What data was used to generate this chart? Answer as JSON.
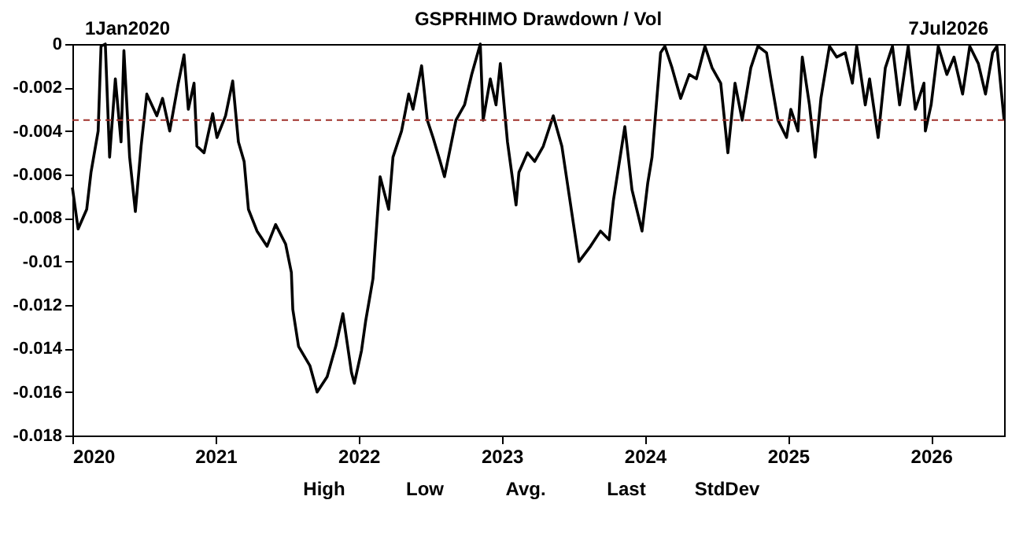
{
  "chart_data": {
    "type": "line",
    "title": "GSPRHIMO Drawdown / Vol",
    "x": [
      2020.0,
      2020.04,
      2020.1,
      2020.13,
      2020.18,
      2020.2,
      2020.23,
      2020.26,
      2020.3,
      2020.34,
      2020.36,
      2020.4,
      2020.44,
      2020.48,
      2020.52,
      2020.59,
      2020.63,
      2020.68,
      2020.74,
      2020.78,
      2020.81,
      2020.85,
      2020.87,
      2020.92,
      2020.98,
      2021.01,
      2021.07,
      2021.12,
      2021.16,
      2021.2,
      2021.23,
      2021.29,
      2021.36,
      2021.42,
      2021.49,
      2021.53,
      2021.54,
      2021.58,
      2021.66,
      2021.71,
      2021.78,
      2021.84,
      2021.89,
      2021.95,
      2021.97,
      2022.02,
      2022.05,
      2022.1,
      2022.15,
      2022.21,
      2022.24,
      2022.3,
      2022.35,
      2022.38,
      2022.44,
      2022.48,
      2022.52,
      2022.57,
      2022.6,
      2022.68,
      2022.74,
      2022.79,
      2022.85,
      2022.87,
      2022.92,
      2022.96,
      2022.99,
      2023.04,
      2023.1,
      2023.12,
      2023.18,
      2023.23,
      2023.29,
      2023.36,
      2023.42,
      2023.47,
      2023.54,
      2023.62,
      2023.69,
      2023.75,
      2023.78,
      2023.86,
      2023.91,
      2023.98,
      2024.02,
      2024.05,
      2024.11,
      2024.14,
      2024.19,
      2024.25,
      2024.31,
      2024.36,
      2024.42,
      2024.47,
      2024.53,
      2024.58,
      2024.63,
      2024.68,
      2024.74,
      2024.79,
      2024.85,
      2024.88,
      2024.93,
      2024.99,
      2025.02,
      2025.07,
      2025.1,
      2025.15,
      2025.19,
      2025.23,
      2025.29,
      2025.34,
      2025.4,
      2025.45,
      2025.48,
      2025.54,
      2025.57,
      2025.63,
      2025.68,
      2025.73,
      2025.78,
      2025.84,
      2025.89,
      2025.95,
      2025.96,
      2026.0,
      2026.05,
      2026.11,
      2026.16,
      2026.22,
      2026.27,
      2026.33,
      2026.38,
      2026.43,
      2026.46,
      2026.51
    ],
    "series": [
      {
        "color": "#000000",
        "values": [
          -0.0066,
          -0.0085,
          -0.0076,
          -0.0059,
          -0.004,
          -0.0001,
          0,
          -0.0052,
          -0.0016,
          -0.0045,
          -0.0003,
          -0.0052,
          -0.0077,
          -0.0047,
          -0.0023,
          -0.0033,
          -0.0025,
          -0.004,
          -0.0018,
          -0.0005,
          -0.003,
          -0.0018,
          -0.0047,
          -0.005,
          -0.0032,
          -0.0043,
          -0.0033,
          -0.0017,
          -0.0045,
          -0.0054,
          -0.0076,
          -0.0086,
          -0.0093,
          -0.0083,
          -0.0092,
          -0.0105,
          -0.0122,
          -0.0139,
          -0.0148,
          -0.016,
          -0.0153,
          -0.0139,
          -0.0124,
          -0.0151,
          -0.0156,
          -0.0141,
          -0.0127,
          -0.0108,
          -0.0061,
          -0.0076,
          -0.0052,
          -0.004,
          -0.0023,
          -0.003,
          -0.001,
          -0.0035,
          -0.0043,
          -0.0054,
          -0.0061,
          -0.0035,
          -0.0028,
          -0.0014,
          0,
          -0.0035,
          -0.0016,
          -0.0028,
          -0.0009,
          -0.0045,
          -0.0074,
          -0.0059,
          -0.005,
          -0.0054,
          -0.0047,
          -0.0033,
          -0.0047,
          -0.0069,
          -0.01,
          -0.0093,
          -0.0086,
          -0.009,
          -0.0072,
          -0.0038,
          -0.0067,
          -0.0086,
          -0.0064,
          -0.0052,
          -0.0004,
          -0.0001,
          -0.0011,
          -0.0025,
          -0.0014,
          -0.0016,
          -0.0001,
          -0.0011,
          -0.0018,
          -0.005,
          -0.0018,
          -0.0035,
          -0.0011,
          -0.0001,
          -0.0004,
          -0.0016,
          -0.0035,
          -0.0043,
          -0.003,
          -0.004,
          -0.0006,
          -0.0028,
          -0.0052,
          -0.0025,
          -0.0001,
          -0.0006,
          -0.0004,
          -0.0018,
          -0.0001,
          -0.0028,
          -0.0016,
          -0.0043,
          -0.0011,
          -0.0001,
          -0.0028,
          -0.0001,
          -0.003,
          -0.0018,
          -0.004,
          -0.0028,
          -0.0001,
          -0.0014,
          -0.0006,
          -0.0023,
          -0.0001,
          -0.0009,
          -0.0023,
          -0.0004,
          -0.0001,
          -0.0035
        ]
      }
    ],
    "xlim": [
      2020,
      2026.51
    ],
    "xticks": [
      2020,
      2021,
      2022,
      2023,
      2024,
      2025,
      2026
    ],
    "ylim": [
      -0.018,
      0
    ],
    "yticks": [
      -0.018,
      -0.016,
      -0.014,
      -0.012,
      -0.01,
      -0.008,
      -0.006,
      -0.004,
      -0.002,
      0
    ],
    "ref_lines": [
      {
        "axis": "y",
        "value": -0.0035,
        "color": "#a0302a",
        "line_style": "dashed"
      }
    ],
    "annotations": [
      "1Jan2020",
      "7Jul2026",
      "High",
      "Low",
      "Avg.",
      "Last",
      "StdDev"
    ],
    "grid": false,
    "marker": "none",
    "line_style": "solid"
  }
}
